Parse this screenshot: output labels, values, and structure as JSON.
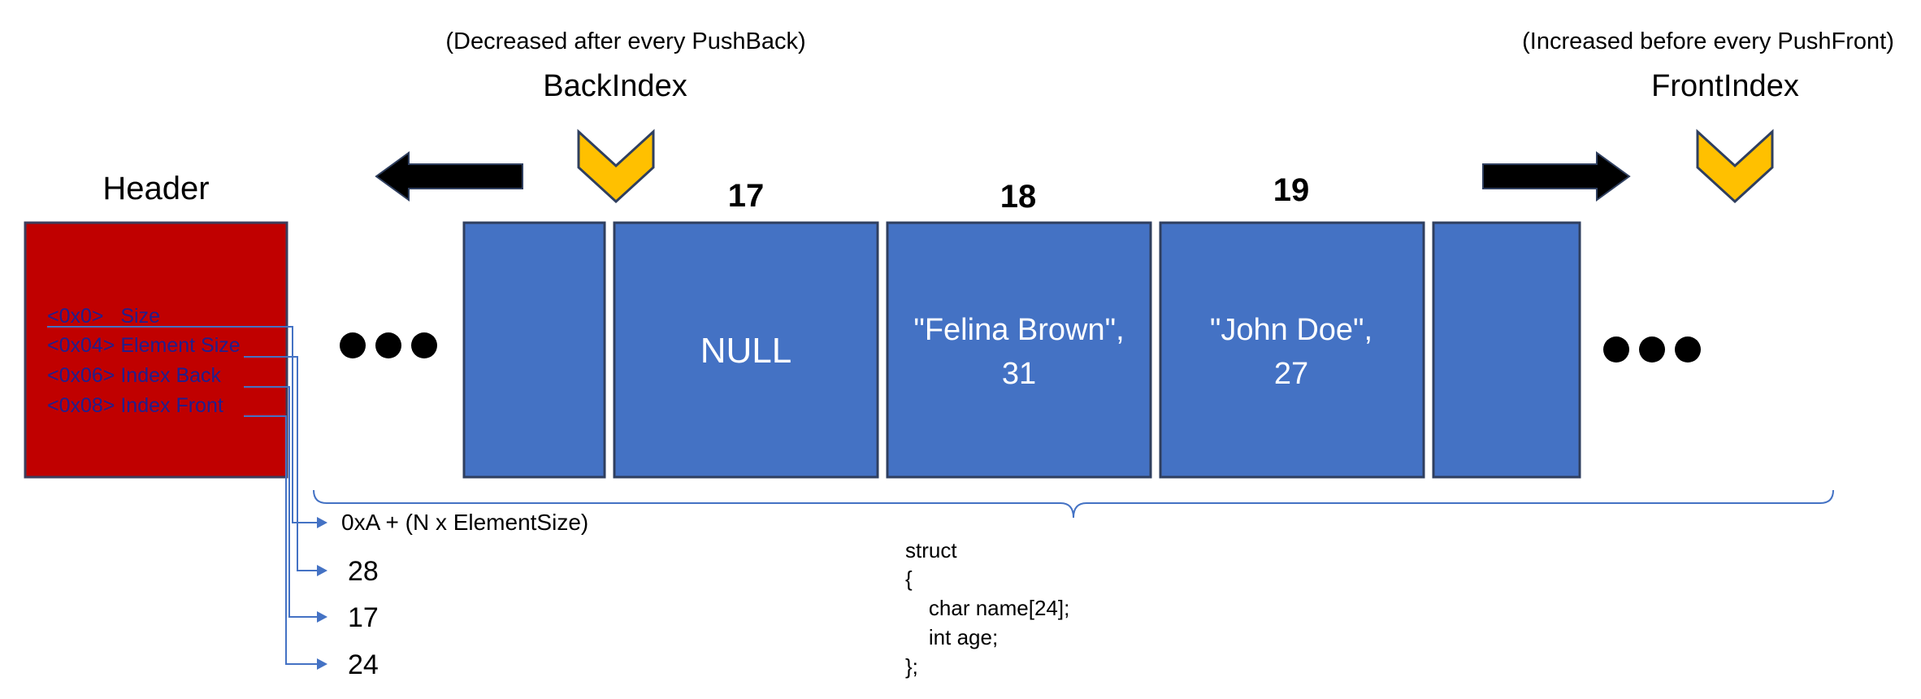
{
  "header": {
    "title": "Header",
    "fields": [
      "<0x0>   Size",
      "<0x04> Element Size",
      "<0x06> Index Back",
      "<0x08> Index Front"
    ]
  },
  "back_index": {
    "label": "BackIndex",
    "note": "(Decreased after every PushBack)"
  },
  "front_index": {
    "label": "FrontIndex",
    "note": "(Increased before every PushFront)"
  },
  "cells": [
    {
      "index": "",
      "lines": []
    },
    {
      "index": "17",
      "lines": [
        "NULL"
      ]
    },
    {
      "index": "18",
      "lines": [
        "\"Felina Brown\",",
        "31"
      ]
    },
    {
      "index": "19",
      "lines": [
        "\"John Doe\",",
        "27"
      ]
    },
    {
      "index": "",
      "lines": []
    }
  ],
  "size_formula": "0xA + (N x ElementSize)",
  "header_values": [
    "28",
    "17",
    "24"
  ],
  "struct_code": [
    "struct",
    "{",
    "    char name[24];",
    "    int age;",
    "};"
  ],
  "colors": {
    "cell": "#4472c4",
    "header": "#c00000",
    "header_text": "#1f1f8f",
    "chevron": "#ffc000",
    "connector": "#4472c4"
  }
}
